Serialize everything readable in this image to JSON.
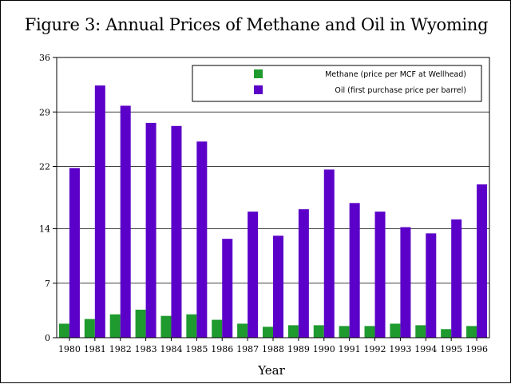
{
  "chart_data": {
    "type": "bar",
    "title": "Figure 3:  Annual Prices of Methane and Oil in Wyoming",
    "xlabel": "Year",
    "ylabel": "",
    "ylim": [
      0,
      36
    ],
    "yticks": [
      0,
      7,
      14,
      22,
      29,
      36
    ],
    "grid": true,
    "legend_position": "top-right",
    "categories": [
      "1980",
      "1981",
      "1982",
      "1983",
      "1984",
      "1985",
      "1986",
      "1987",
      "1988",
      "1989",
      "1990",
      "1991",
      "1992",
      "1993",
      "1994",
      "1995",
      "1996"
    ],
    "series": [
      {
        "name": "Methane (price per MCF at Wellhead)",
        "color": "#1e9a2e",
        "values": [
          1.8,
          2.4,
          3.0,
          3.6,
          2.8,
          3.0,
          2.3,
          1.8,
          1.4,
          1.6,
          1.6,
          1.5,
          1.5,
          1.8,
          1.6,
          1.1,
          1.5
        ]
      },
      {
        "name": "Oil (first purchase price per barrel)",
        "color": "#5b00c8",
        "values": [
          21.8,
          32.4,
          29.8,
          27.6,
          27.2,
          25.2,
          12.7,
          16.2,
          13.1,
          16.5,
          21.6,
          17.3,
          16.2,
          14.2,
          13.4,
          15.2,
          19.7
        ]
      }
    ]
  }
}
